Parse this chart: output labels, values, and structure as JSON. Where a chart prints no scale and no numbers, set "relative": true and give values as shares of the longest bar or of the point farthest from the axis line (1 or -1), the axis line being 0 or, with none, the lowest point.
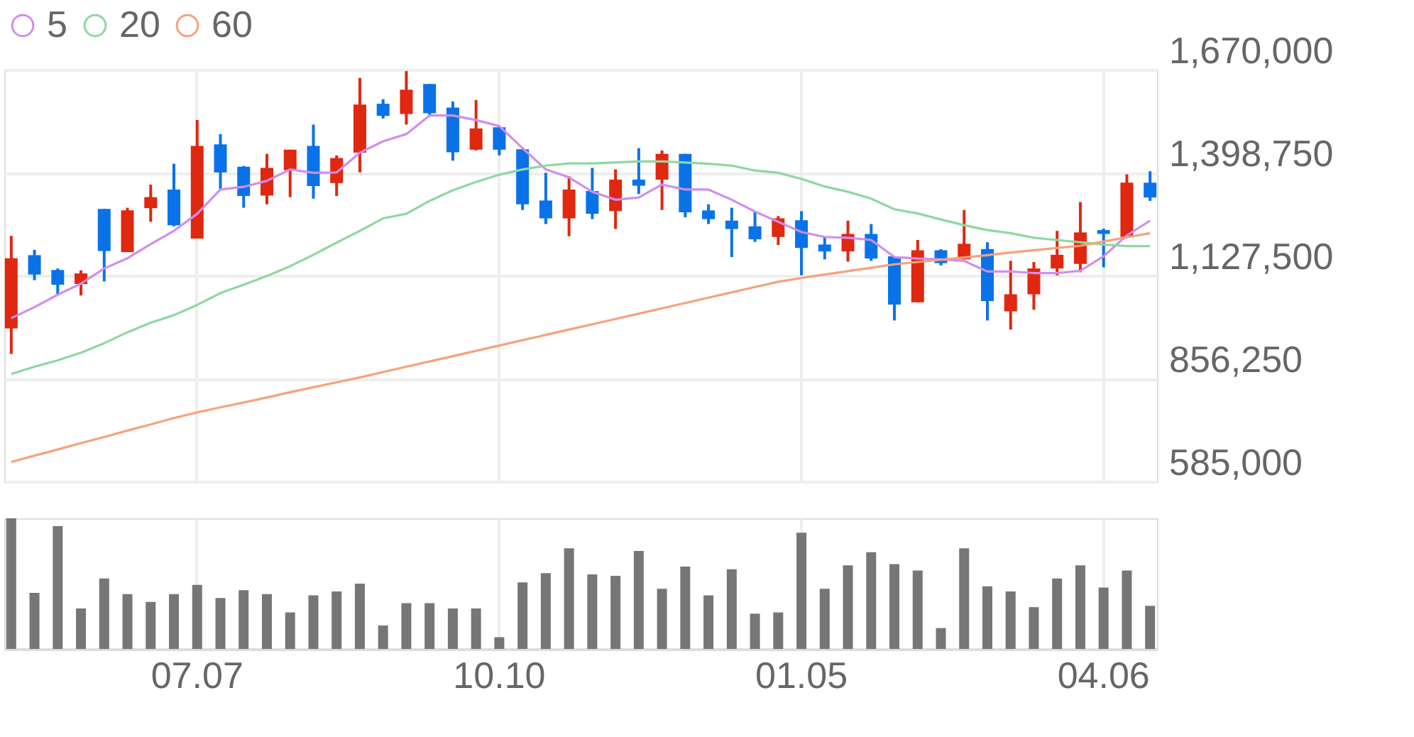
{
  "chart_data": [
    {
      "type": "candlestick",
      "categories": [
        null,
        null,
        null,
        null,
        null,
        null,
        null,
        null,
        "07.07",
        null,
        null,
        null,
        null,
        null,
        null,
        null,
        null,
        null,
        null,
        null,
        null,
        "10.10",
        null,
        null,
        null,
        null,
        null,
        null,
        null,
        null,
        null,
        null,
        null,
        null,
        "01.05",
        null,
        null,
        null,
        null,
        null,
        null,
        null,
        null,
        null,
        null,
        null,
        null,
        "04.06",
        null,
        null
      ],
      "ohlc": [
        [
          988000,
          1232000,
          921000,
          1173000
        ],
        [
          1181000,
          1195000,
          1115000,
          1130000
        ],
        [
          1142000,
          1146000,
          1077000,
          1103000
        ],
        [
          1105000,
          1141000,
          1075000,
          1133000
        ],
        [
          1303000,
          1303000,
          1112000,
          1192000
        ],
        [
          1189000,
          1306000,
          1189000,
          1299000
        ],
        [
          1305000,
          1367000,
          1269000,
          1334000
        ],
        [
          1354000,
          1422000,
          1257000,
          1260000
        ],
        [
          1225000,
          1537000,
          1225000,
          1469000
        ],
        [
          1473000,
          1500000,
          1356000,
          1399000
        ],
        [
          1414000,
          1416000,
          1306000,
          1337000
        ],
        [
          1338000,
          1448000,
          1315000,
          1411000
        ],
        [
          1405000,
          1459000,
          1334000,
          1459000
        ],
        [
          1469000,
          1525000,
          1330000,
          1363000
        ],
        [
          1371000,
          1444000,
          1337000,
          1437000
        ],
        [
          1451000,
          1648000,
          1399000,
          1578000
        ],
        [
          1580000,
          1592000,
          1541000,
          1548000
        ],
        [
          1553000,
          1666000,
          1525000,
          1617000
        ],
        [
          1632000,
          1632000,
          1546000,
          1555000
        ],
        [
          1570000,
          1586000,
          1430000,
          1452000
        ],
        [
          1459000,
          1590000,
          1457000,
          1515000
        ],
        [
          1518000,
          1521000,
          1444000,
          1459000
        ],
        [
          1460000,
          1460000,
          1300000,
          1315000
        ],
        [
          1325000,
          1398000,
          1263000,
          1278000
        ],
        [
          1278000,
          1389000,
          1231000,
          1354000
        ],
        [
          1350000,
          1411000,
          1276000,
          1290000
        ],
        [
          1297000,
          1407000,
          1250000,
          1380000
        ],
        [
          1380000,
          1463000,
          1342000,
          1364000
        ],
        [
          1380000,
          1457000,
          1300000,
          1448000
        ],
        [
          1448000,
          1448000,
          1281000,
          1294000
        ],
        [
          1299000,
          1315000,
          1263000,
          1276000
        ],
        [
          1272000,
          1306000,
          1176000,
          1250000
        ],
        [
          1257000,
          1297000,
          1216000,
          1223000
        ],
        [
          1229000,
          1284000,
          1208000,
          1278000
        ],
        [
          1273000,
          1297000,
          1128000,
          1200000
        ],
        [
          1209000,
          1227000,
          1170000,
          1191000
        ],
        [
          1191000,
          1272000,
          1164000,
          1237000
        ],
        [
          1237000,
          1263000,
          1166000,
          1172000
        ],
        [
          1178000,
          1178000,
          1009000,
          1051000
        ],
        [
          1057000,
          1221000,
          1057000,
          1194000
        ],
        [
          1194000,
          1197000,
          1154000,
          1160000
        ],
        [
          1170000,
          1300000,
          1170000,
          1211000
        ],
        [
          1197000,
          1215000,
          1009000,
          1060000
        ],
        [
          1033000,
          1166000,
          985000,
          1078000
        ],
        [
          1078000,
          1163000,
          1037000,
          1146000
        ],
        [
          1146000,
          1245000,
          1128000,
          1182000
        ],
        [
          1158000,
          1321000,
          1136000,
          1241000
        ],
        [
          1247000,
          1251000,
          1149000,
          1237000
        ],
        [
          1229000,
          1394000,
          1229000,
          1372000
        ],
        [
          1372000,
          1402000,
          1324000,
          1333000
        ]
      ],
      "colors": [
        "#e0270f",
        "#0a72e8",
        "#0a72e8",
        "#e0270f",
        "#0a72e8",
        "#e0270f",
        "#e0270f",
        "#0a72e8",
        "#e0270f",
        "#0a72e8",
        "#0a72e8",
        "#e0270f",
        "#e0270f",
        "#0a72e8",
        "#e0270f",
        "#e0270f",
        "#0a72e8",
        "#e0270f",
        "#0a72e8",
        "#0a72e8",
        "#e0270f",
        "#0a72e8",
        "#0a72e8",
        "#0a72e8",
        "#e0270f",
        "#0a72e8",
        "#e0270f",
        "#0a72e8",
        "#e0270f",
        "#0a72e8",
        "#0a72e8",
        "#0a72e8",
        "#0a72e8",
        "#e0270f",
        "#0a72e8",
        "#0a72e8",
        "#e0270f",
        "#0a72e8",
        "#0a72e8",
        "#e0270f",
        "#0a72e8",
        "#e0270f",
        "#0a72e8",
        "#e0270f",
        "#e0270f",
        "#e0270f",
        "#e0270f",
        "#0a72e8",
        "#e0270f",
        "#0a72e8"
      ],
      "series": [
        {
          "name": "5",
          "type": "line",
          "color": "#cf8ef0",
          "values": [
            1015000,
            1044000,
            1077000,
            1106000,
            1146000,
            1173000,
            1210000,
            1245000,
            1290000,
            1354000,
            1361000,
            1377000,
            1407000,
            1398000,
            1399000,
            1451000,
            1481000,
            1500000,
            1549000,
            1549000,
            1537000,
            1521000,
            1463000,
            1407000,
            1386000,
            1348000,
            1327000,
            1333000,
            1367000,
            1354000,
            1354000,
            1327000,
            1296000,
            1269000,
            1242000,
            1229000,
            1227000,
            1221000,
            1176000,
            1172000,
            1170000,
            1166000,
            1138000,
            1138000,
            1134000,
            1134000,
            1140000,
            1178000,
            1233000,
            1272000
          ]
        },
        {
          "name": "20",
          "type": "line",
          "color": "#8ed8a0",
          "values": [
            868000,
            887000,
            904000,
            924000,
            949000,
            978000,
            1003000,
            1023000,
            1050000,
            1081000,
            1103000,
            1126000,
            1152000,
            1182000,
            1214000,
            1245000,
            1278000,
            1290000,
            1324000,
            1352000,
            1374000,
            1393000,
            1407000,
            1417000,
            1423000,
            1423000,
            1425000,
            1428000,
            1428000,
            1425000,
            1422000,
            1417000,
            1404000,
            1398000,
            1382000,
            1362000,
            1348000,
            1330000,
            1302000,
            1291000,
            1275000,
            1260000,
            1247000,
            1239000,
            1227000,
            1221000,
            1215000,
            1209000,
            1205000,
            1205000
          ]
        },
        {
          "name": "60",
          "type": "line",
          "color": "#f5a27c",
          "values": [
            636000,
            653000,
            669000,
            686000,
            702000,
            719000,
            735000,
            752000,
            767000,
            780000,
            793000,
            806000,
            820000,
            833000,
            846000,
            859000,
            873000,
            887000,
            901000,
            915000,
            929000,
            943000,
            957000,
            971000,
            985000,
            999000,
            1013000,
            1027000,
            1041000,
            1055000,
            1069000,
            1083000,
            1097000,
            1111000,
            1121000,
            1130000,
            1139000,
            1148000,
            1157000,
            1163000,
            1169000,
            1175000,
            1181000,
            1188000,
            1194000,
            1200000,
            1206000,
            1217000,
            1228000,
            1239000
          ]
        }
      ],
      "ylim": [
        585000,
        1670000
      ],
      "yticks": [
        {
          "value": 585000,
          "label": "585,000"
        },
        {
          "value": 856250,
          "label": "856,250"
        },
        {
          "value": 1127500,
          "label": "1,127,500"
        },
        {
          "value": 1398750,
          "label": "1,398,750"
        },
        {
          "value": 1670000,
          "label": "1,670,000"
        }
      ],
      "grid": true,
      "legend": "top left",
      "tick_labels": "y"
    },
    {
      "type": "bar",
      "categories": [
        null,
        null,
        null,
        null,
        null,
        null,
        null,
        null,
        "07.07",
        null,
        null,
        null,
        null,
        null,
        null,
        null,
        null,
        null,
        null,
        null,
        null,
        "10.10",
        null,
        null,
        null,
        null,
        null,
        null,
        null,
        null,
        null,
        null,
        null,
        null,
        "01.05",
        null,
        null,
        null,
        null,
        null,
        null,
        null,
        null,
        null,
        null,
        null,
        null,
        "04.06",
        null,
        null
      ],
      "values": [
        1,
        0.43,
        0.94,
        0.31,
        0.54,
        0.42,
        0.36,
        0.42,
        0.49,
        0.39,
        0.45,
        0.42,
        0.28,
        0.41,
        0.44,
        0.5,
        0.18,
        0.35,
        0.35,
        0.31,
        0.31,
        0.09,
        0.51,
        0.58,
        0.77,
        0.57,
        0.56,
        0.75,
        0.46,
        0.63,
        0.41,
        0.61,
        0.27,
        0.28,
        0.89,
        0.46,
        0.64,
        0.74,
        0.65,
        0.6,
        0.16,
        0.77,
        0.48,
        0.44,
        0.32,
        0.54,
        0.64,
        0.47,
        0.6,
        0.33
      ],
      "color": "#767676",
      "relative": true,
      "grid": "x"
    }
  ]
}
